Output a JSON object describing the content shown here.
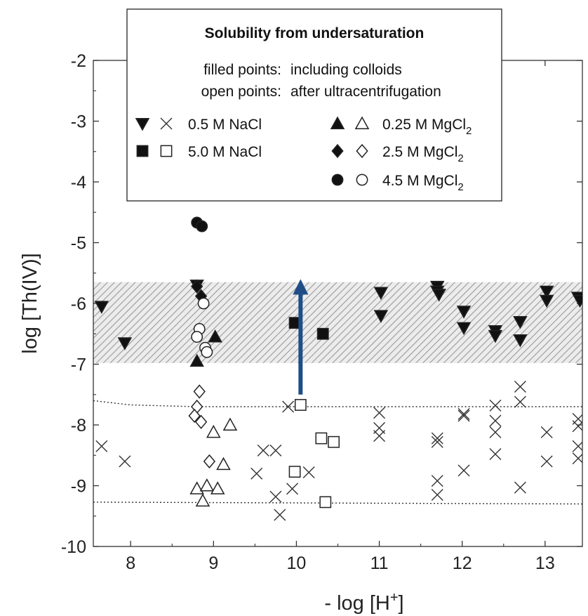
{
  "chart_data": {
    "type": "scatter",
    "xlabel": "- log [H",
    "xlabel_sup": "+",
    "xlabel_end": "]",
    "ylabel": "log [Th(IV)]",
    "xlim": [
      7.55,
      13.45
    ],
    "ylim": [
      -10,
      -2
    ],
    "x_ticks": [
      8,
      9,
      10,
      11,
      12,
      13
    ],
    "y_ticks": [
      -2,
      -3,
      -4,
      -5,
      -6,
      -7,
      -8,
      -9,
      -10
    ],
    "shaded_band": {
      "y_from": -6.98,
      "y_to": -5.65,
      "pattern": "hatched-gray"
    },
    "dotted_lines": [
      {
        "points": [
          [
            7.55,
            -7.6
          ],
          [
            8.0,
            -7.67
          ],
          [
            8.8,
            -7.7
          ],
          [
            13.45,
            -7.7
          ]
        ]
      },
      {
        "points": [
          [
            7.55,
            -9.27
          ],
          [
            13.45,
            -9.3
          ]
        ]
      }
    ],
    "arrow": {
      "x": 10.05,
      "y_from": -7.5,
      "y_to": -5.6,
      "color": "#1f4e87"
    },
    "legend": {
      "title": "Solubility from undersaturation",
      "notes": [
        {
          "key": "filled points:",
          "value": "including colloids"
        },
        {
          "key": "open points:",
          "value": "after ultracentrifugation"
        }
      ],
      "entries": [
        {
          "label": "0.5 M NaCl",
          "sub": "",
          "filled": "triangle-down",
          "open": "x"
        },
        {
          "label": "5.0 M NaCl",
          "sub": "",
          "filled": "square",
          "open": "square"
        },
        {
          "label": "0.25 M MgCl",
          "sub": "2",
          "filled": "triangle-up",
          "open": "triangle-up"
        },
        {
          "label": "2.5 M MgCl",
          "sub": "2",
          "filled": "diamond",
          "open": "diamond"
        },
        {
          "label": "4.5 M MgCl",
          "sub": "2",
          "filled": "circle",
          "open": "circle"
        }
      ]
    },
    "series": [
      {
        "name": "0.5 M NaCl",
        "marker": "triangle-down",
        "filled": true,
        "points": [
          [
            7.65,
            -6.05
          ],
          [
            7.93,
            -6.65
          ],
          [
            8.8,
            -5.7
          ],
          [
            11.02,
            -5.82
          ],
          [
            11.02,
            -6.2
          ],
          [
            11.7,
            -5.72
          ],
          [
            11.7,
            -5.8
          ],
          [
            11.72,
            -5.85
          ],
          [
            12.02,
            -6.13
          ],
          [
            12.02,
            -6.4
          ],
          [
            12.4,
            -6.45
          ],
          [
            12.4,
            -6.53
          ],
          [
            12.7,
            -6.3
          ],
          [
            12.7,
            -6.6
          ],
          [
            13.02,
            -5.8
          ],
          [
            13.02,
            -5.95
          ],
          [
            13.4,
            -5.9
          ],
          [
            13.42,
            -5.95
          ]
        ]
      },
      {
        "name": "0.5 M NaCl",
        "marker": "x",
        "filled": false,
        "points": [
          [
            7.65,
            -8.35
          ],
          [
            7.93,
            -8.6
          ],
          [
            9.52,
            -8.8
          ],
          [
            9.6,
            -8.42
          ],
          [
            9.75,
            -8.42
          ],
          [
            9.75,
            -9.18
          ],
          [
            9.8,
            -9.48
          ],
          [
            9.9,
            -7.7
          ],
          [
            9.95,
            -9.05
          ],
          [
            10.15,
            -8.78
          ],
          [
            11.0,
            -7.8
          ],
          [
            11.0,
            -8.05
          ],
          [
            11.0,
            -8.18
          ],
          [
            11.7,
            -8.22
          ],
          [
            11.7,
            -8.28
          ],
          [
            11.7,
            -8.92
          ],
          [
            11.7,
            -9.15
          ],
          [
            12.02,
            -7.82
          ],
          [
            12.02,
            -7.85
          ],
          [
            12.02,
            -8.75
          ],
          [
            12.4,
            -7.68
          ],
          [
            12.4,
            -7.93
          ],
          [
            12.4,
            -8.12
          ],
          [
            12.4,
            -8.48
          ],
          [
            12.7,
            -7.37
          ],
          [
            12.7,
            -7.62
          ],
          [
            12.7,
            -9.03
          ],
          [
            13.02,
            -8.12
          ],
          [
            13.02,
            -8.6
          ],
          [
            13.4,
            -7.9
          ],
          [
            13.4,
            -8.02
          ],
          [
            13.4,
            -8.35
          ],
          [
            13.4,
            -8.55
          ]
        ]
      },
      {
        "name": "5.0 M NaCl",
        "marker": "square",
        "filled": true,
        "points": [
          [
            9.98,
            -6.32
          ],
          [
            10.32,
            -6.5
          ]
        ]
      },
      {
        "name": "5.0 M NaCl",
        "marker": "square",
        "filled": false,
        "points": [
          [
            10.05,
            -7.67
          ],
          [
            10.3,
            -8.22
          ],
          [
            10.45,
            -8.28
          ],
          [
            9.98,
            -8.77
          ],
          [
            10.35,
            -9.27
          ]
        ]
      },
      {
        "name": "0.25 M MgCl2",
        "marker": "triangle-up",
        "filled": true,
        "points": [
          [
            8.8,
            -6.95
          ],
          [
            9.02,
            -6.55
          ]
        ]
      },
      {
        "name": "0.25 M MgCl2",
        "marker": "triangle-up",
        "filled": false,
        "points": [
          [
            9.0,
            -8.12
          ],
          [
            9.2,
            -8.0
          ],
          [
            9.12,
            -8.65
          ],
          [
            8.8,
            -9.05
          ],
          [
            8.87,
            -9.25
          ],
          [
            8.92,
            -9.0
          ],
          [
            9.05,
            -9.05
          ]
        ]
      },
      {
        "name": "2.5 M MgCl2",
        "marker": "diamond",
        "filled": true,
        "points": [
          [
            8.8,
            -5.72
          ],
          [
            8.85,
            -5.88
          ]
        ]
      },
      {
        "name": "2.5 M MgCl2",
        "marker": "diamond",
        "filled": false,
        "points": [
          [
            8.83,
            -7.45
          ],
          [
            8.8,
            -7.7
          ],
          [
            8.77,
            -7.85
          ],
          [
            8.85,
            -7.95
          ],
          [
            8.95,
            -8.6
          ]
        ]
      },
      {
        "name": "4.5 M MgCl2",
        "marker": "circle",
        "filled": true,
        "points": [
          [
            8.8,
            -4.67
          ],
          [
            8.86,
            -4.73
          ]
        ]
      },
      {
        "name": "4.5 M MgCl2",
        "marker": "circle",
        "filled": false,
        "points": [
          [
            8.88,
            -6.0
          ],
          [
            8.83,
            -6.42
          ],
          [
            8.8,
            -6.55
          ],
          [
            8.9,
            -6.73
          ],
          [
            8.92,
            -6.8
          ]
        ]
      }
    ]
  }
}
